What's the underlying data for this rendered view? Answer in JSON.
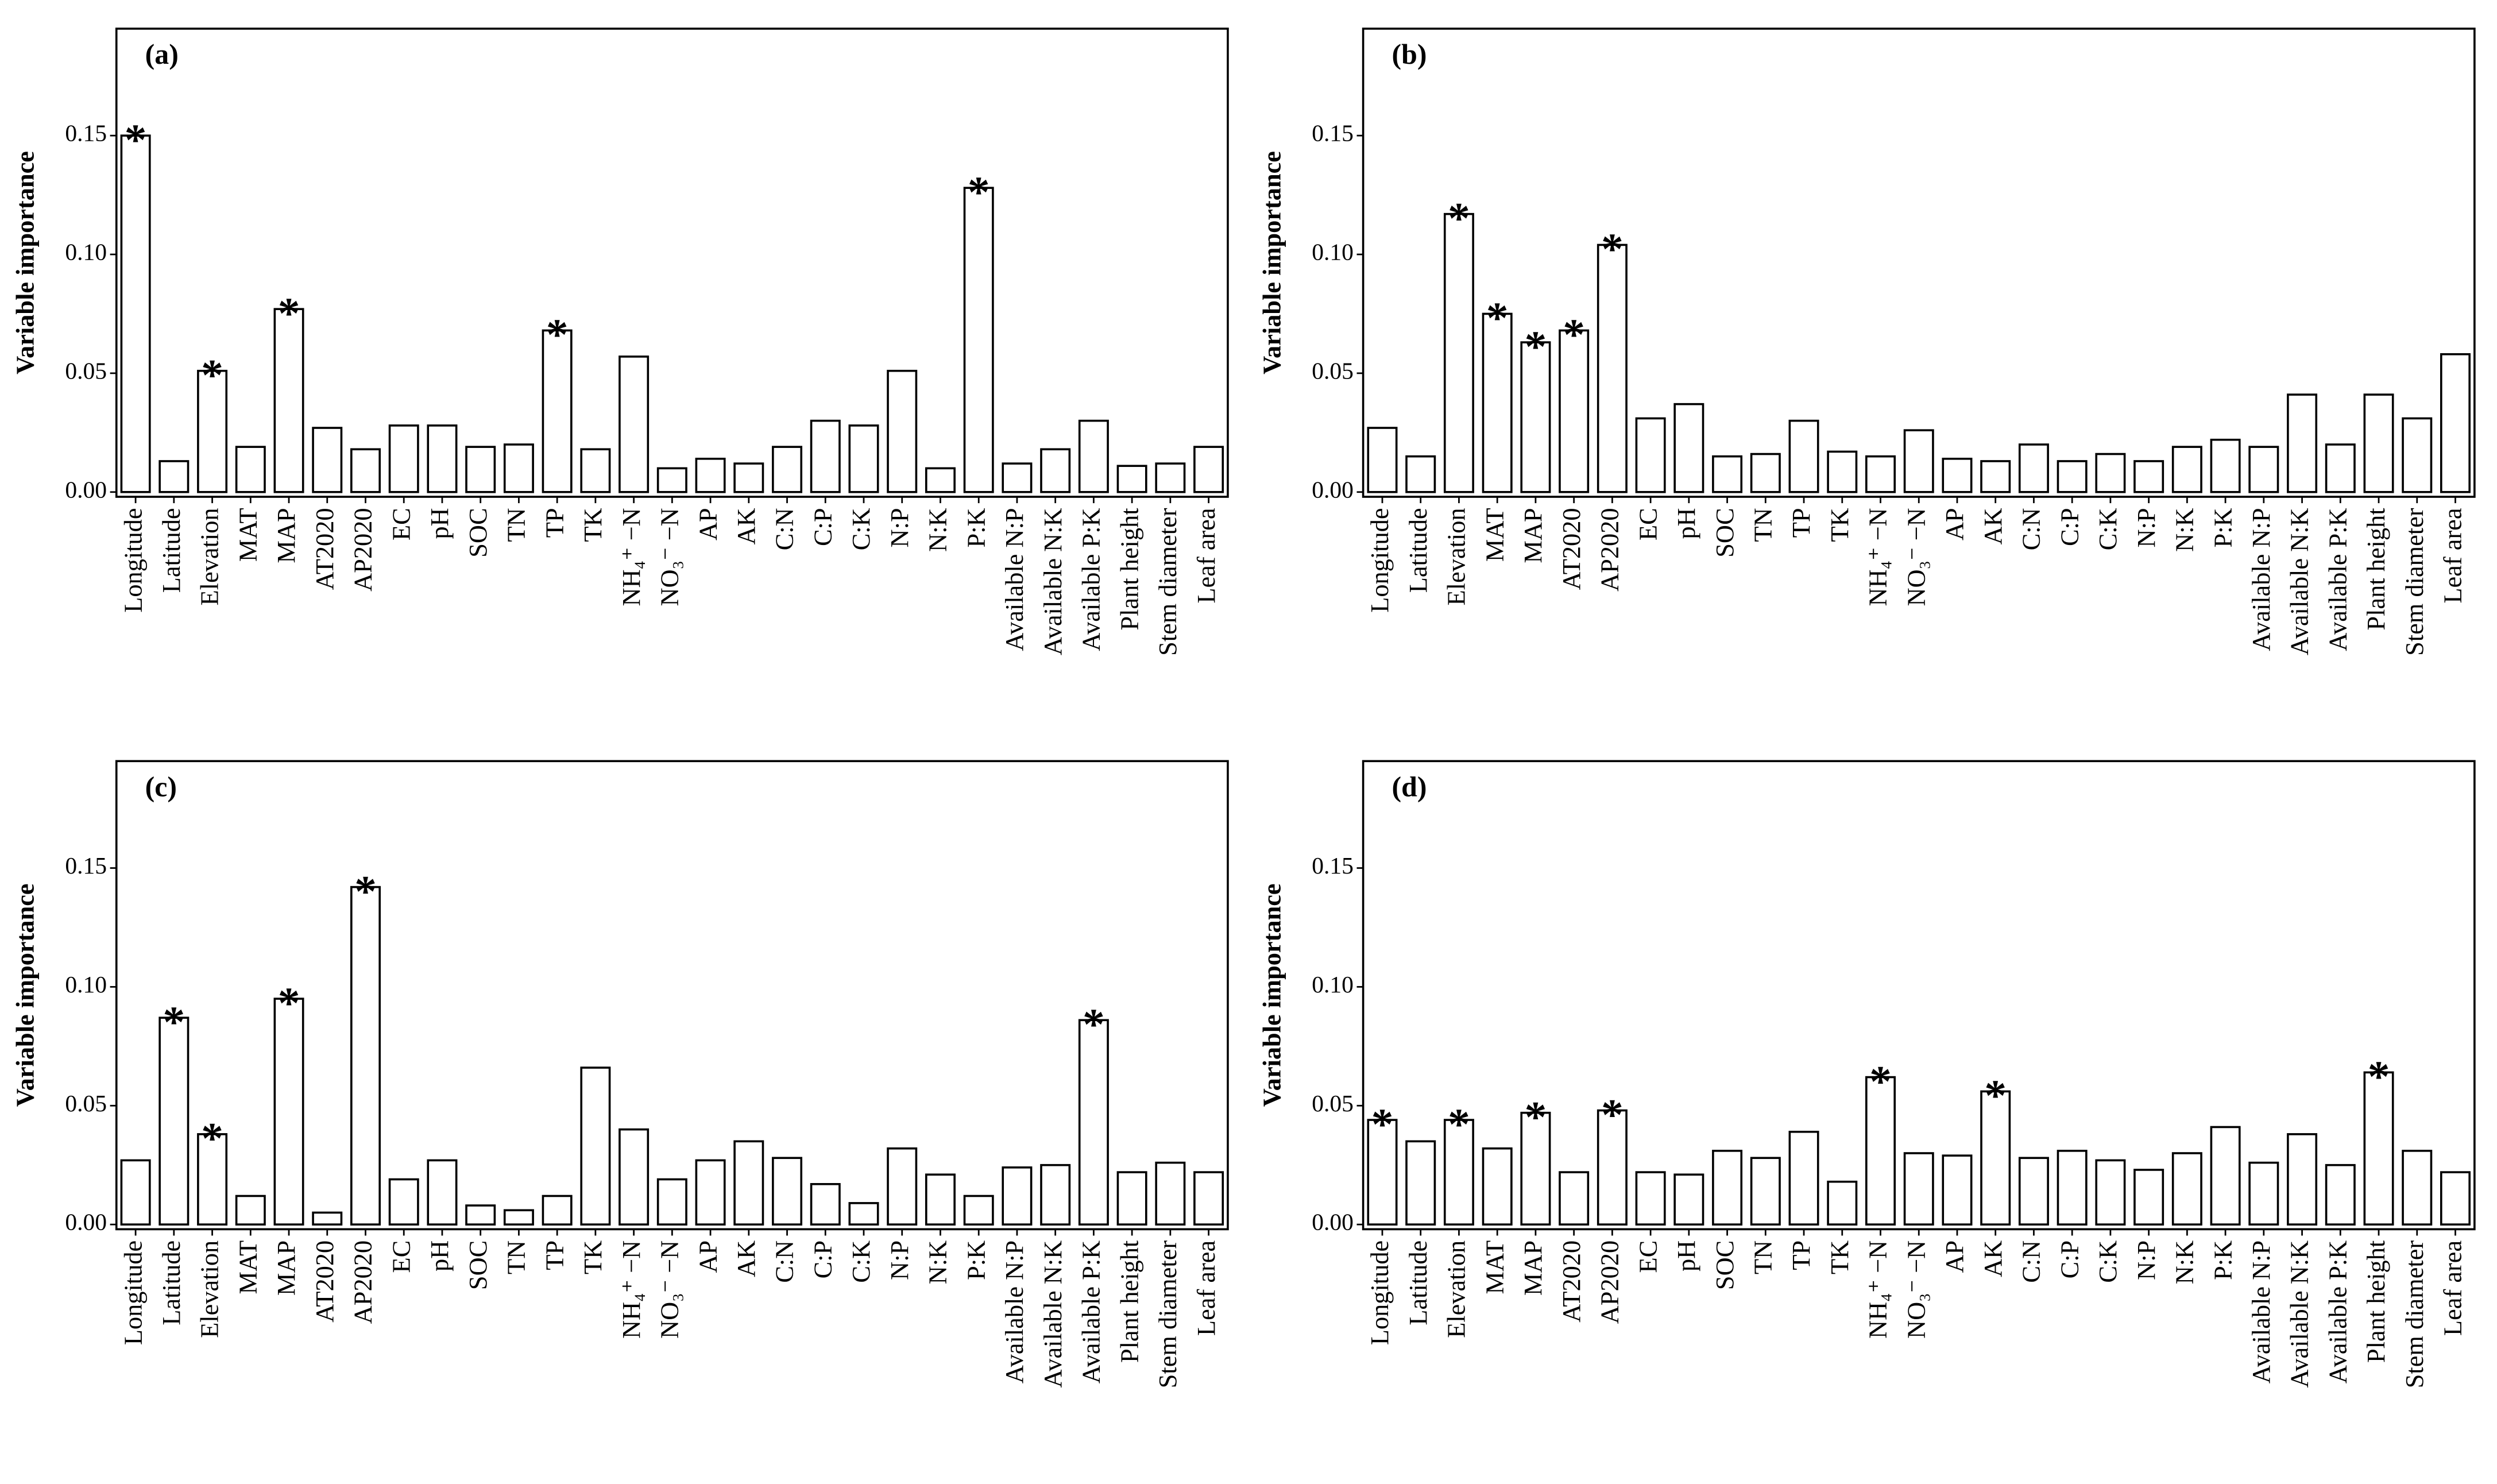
{
  "chart_data": [
    {
      "type": "bar",
      "title": "(a)",
      "ylabel": "Variable importance",
      "color": "#ffffff",
      "edgecolor": "#000000",
      "categories": [
        "Longitude",
        "Latitude",
        "Elevation",
        "MAT",
        "MAP",
        "AT2020",
        "AP2020",
        "EC",
        "pH",
        "SOC",
        "TN",
        "TP",
        "TK",
        "NH₄⁺ −N",
        "NO₃⁻ −N",
        "AP",
        "AK",
        "C:N",
        "C:P",
        "C:K",
        "N:P",
        "N:K",
        "P:K",
        "Available N:P",
        "Available N:K",
        "Available P:K",
        "Plant height",
        "Stem diameter",
        "Leaf area"
      ],
      "values": [
        0.15,
        0.013,
        0.051,
        0.019,
        0.077,
        0.027,
        0.018,
        0.028,
        0.028,
        0.019,
        0.02,
        0.068,
        0.018,
        0.057,
        0.01,
        0.014,
        0.012,
        0.019,
        0.03,
        0.028,
        0.051,
        0.01,
        0.128,
        0.012,
        0.018,
        0.03,
        0.011,
        0.012,
        0.019
      ],
      "annotations": [
        "*",
        null,
        "*",
        null,
        "*",
        null,
        null,
        null,
        null,
        null,
        null,
        "*",
        null,
        null,
        null,
        null,
        null,
        null,
        null,
        null,
        null,
        null,
        "*",
        null,
        null,
        null,
        null,
        null,
        null
      ],
      "ylim": [
        -0.002,
        0.195
      ],
      "yticks": [
        {
          "value": 0,
          "label": "0.00"
        },
        {
          "value": 0.05,
          "label": "0.05"
        },
        {
          "value": 0.1,
          "label": "0.10"
        },
        {
          "value": 0.15,
          "label": "0.15"
        }
      ]
    },
    {
      "type": "bar",
      "title": "(b)",
      "ylabel": "Variable importance",
      "color": "#ffffff",
      "edgecolor": "#000000",
      "categories": [
        "Longitude",
        "Latitude",
        "Elevation",
        "MAT",
        "MAP",
        "AT2020",
        "AP2020",
        "EC",
        "pH",
        "SOC",
        "TN",
        "TP",
        "TK",
        "NH₄⁺ −N",
        "NO₃⁻ −N",
        "AP",
        "AK",
        "C:N",
        "C:P",
        "C:K",
        "N:P",
        "N:K",
        "P:K",
        "Available N:P",
        "Available N:K",
        "Available P:K",
        "Plant height",
        "Stem diameter",
        "Leaf area"
      ],
      "values": [
        0.027,
        0.015,
        0.117,
        0.075,
        0.063,
        0.068,
        0.104,
        0.031,
        0.037,
        0.015,
        0.016,
        0.03,
        0.017,
        0.015,
        0.026,
        0.014,
        0.013,
        0.02,
        0.013,
        0.016,
        0.013,
        0.019,
        0.022,
        0.019,
        0.041,
        0.02,
        0.041,
        0.031,
        0.058
      ],
      "annotations": [
        null,
        null,
        "*",
        "*",
        "*",
        "*",
        "*",
        null,
        null,
        null,
        null,
        null,
        null,
        null,
        null,
        null,
        null,
        null,
        null,
        null,
        null,
        null,
        null,
        null,
        null,
        null,
        null,
        null,
        null
      ],
      "ylim": [
        -0.002,
        0.195
      ],
      "yticks": [
        {
          "value": 0,
          "label": "0.00"
        },
        {
          "value": 0.05,
          "label": "0.05"
        },
        {
          "value": 0.1,
          "label": "0.10"
        },
        {
          "value": 0.15,
          "label": "0.15"
        }
      ]
    },
    {
      "type": "bar",
      "title": "(c)",
      "ylabel": "Variable importance",
      "color": "#ffffff",
      "edgecolor": "#000000",
      "categories": [
        "Longitude",
        "Latitude",
        "Elevation",
        "MAT",
        "MAP",
        "AT2020",
        "AP2020",
        "EC",
        "pH",
        "SOC",
        "TN",
        "TP",
        "TK",
        "NH₄⁺ −N",
        "NO₃⁻ −N",
        "AP",
        "AK",
        "C:N",
        "C:P",
        "C:K",
        "N:P",
        "N:K",
        "P:K",
        "Available N:P",
        "Available N:K",
        "Available P:K",
        "Plant height",
        "Stem diameter",
        "Leaf area"
      ],
      "values": [
        0.027,
        0.087,
        0.038,
        0.012,
        0.095,
        0.005,
        0.142,
        0.019,
        0.027,
        0.008,
        0.006,
        0.012,
        0.066,
        0.04,
        0.019,
        0.027,
        0.035,
        0.028,
        0.017,
        0.009,
        0.032,
        0.021,
        0.012,
        0.024,
        0.025,
        0.086,
        0.022,
        0.026,
        0.022
      ],
      "annotations": [
        null,
        "*",
        "*",
        null,
        "*",
        null,
        "*",
        null,
        null,
        null,
        null,
        null,
        null,
        null,
        null,
        null,
        null,
        null,
        null,
        null,
        null,
        null,
        null,
        null,
        null,
        "*",
        null,
        null,
        null
      ],
      "ylim": [
        -0.002,
        0.195
      ],
      "yticks": [
        {
          "value": 0,
          "label": "0.00"
        },
        {
          "value": 0.05,
          "label": "0.05"
        },
        {
          "value": 0.1,
          "label": "0.10"
        },
        {
          "value": 0.15,
          "label": "0.15"
        }
      ]
    },
    {
      "type": "bar",
      "title": "(d)",
      "ylabel": "Variable importance",
      "color": "#ffffff",
      "edgecolor": "#000000",
      "categories": [
        "Longitude",
        "Latitude",
        "Elevation",
        "MAT",
        "MAP",
        "AT2020",
        "AP2020",
        "EC",
        "pH",
        "SOC",
        "TN",
        "TP",
        "TK",
        "NH₄⁺ −N",
        "NO₃⁻ −N",
        "AP",
        "AK",
        "C:N",
        "C:P",
        "C:K",
        "N:P",
        "N:K",
        "P:K",
        "Available N:P",
        "Available N:K",
        "Available P:K",
        "Plant height",
        "Stem diameter",
        "Leaf area"
      ],
      "values": [
        0.044,
        0.035,
        0.044,
        0.032,
        0.047,
        0.022,
        0.048,
        0.022,
        0.021,
        0.031,
        0.028,
        0.039,
        0.018,
        0.062,
        0.03,
        0.029,
        0.056,
        0.028,
        0.031,
        0.027,
        0.023,
        0.03,
        0.041,
        0.026,
        0.038,
        0.025,
        0.064,
        0.031,
        0.022
      ],
      "annotations": [
        "*",
        null,
        "*",
        null,
        "*",
        null,
        "*",
        null,
        null,
        null,
        null,
        null,
        null,
        "*",
        null,
        null,
        "*",
        null,
        null,
        null,
        null,
        null,
        null,
        null,
        null,
        null,
        "*",
        null,
        null
      ],
      "ylim": [
        -0.002,
        0.195
      ],
      "yticks": [
        {
          "value": 0,
          "label": "0.00"
        },
        {
          "value": 0.05,
          "label": "0.05"
        },
        {
          "value": 0.1,
          "label": "0.10"
        },
        {
          "value": 0.15,
          "label": "0.15"
        }
      ]
    }
  ]
}
